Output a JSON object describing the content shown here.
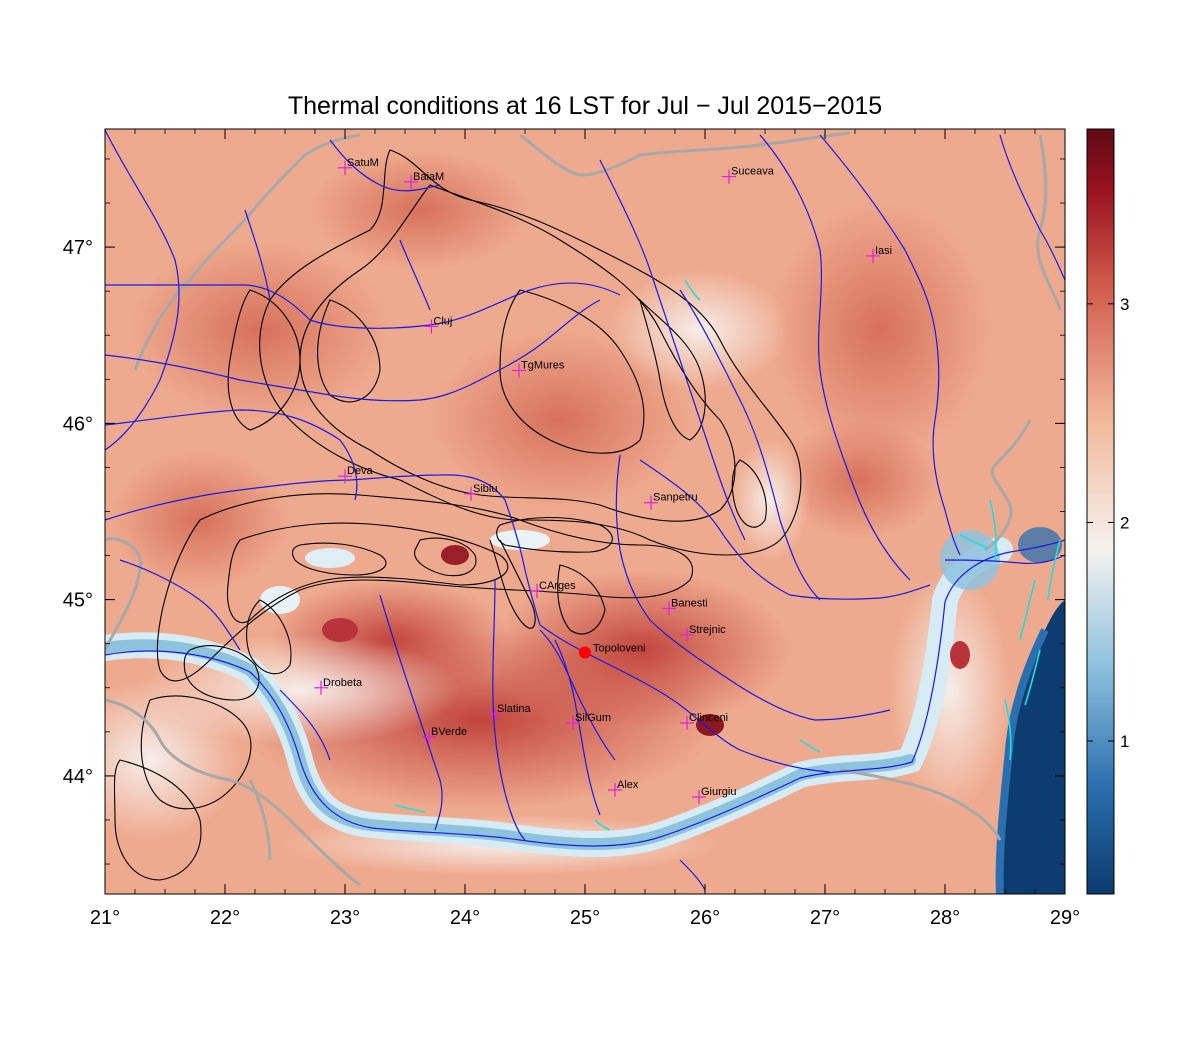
{
  "title": "Thermal conditions at 16 LST for Jul − Jul  2015−2015",
  "axes": {
    "x_ticks": [
      {
        "value": 21,
        "label": "21°"
      },
      {
        "value": 22,
        "label": "22°"
      },
      {
        "value": 23,
        "label": "23°"
      },
      {
        "value": 24,
        "label": "24°"
      },
      {
        "value": 25,
        "label": "25°"
      },
      {
        "value": 26,
        "label": "26°"
      },
      {
        "value": 27,
        "label": "27°"
      },
      {
        "value": 28,
        "label": "28°"
      },
      {
        "value": 29,
        "label": "29°"
      }
    ],
    "y_ticks": [
      {
        "value": 44,
        "label": "44°"
      },
      {
        "value": 45,
        "label": "45°"
      },
      {
        "value": 46,
        "label": "46°"
      },
      {
        "value": 47,
        "label": "47°"
      }
    ],
    "lon_range": [
      21,
      29
    ],
    "lat_range": [
      43.33,
      47.67
    ]
  },
  "colorbar": {
    "range": [
      0.3,
      3.8
    ],
    "ticks": [
      {
        "value": 1,
        "label": "1"
      },
      {
        "value": 2,
        "label": "2"
      },
      {
        "value": 3,
        "label": "3"
      }
    ],
    "colors": [
      "#0b3b6e",
      "#2b6fae",
      "#8fc2de",
      "#f4f2ef",
      "#f2b89a",
      "#d0584a",
      "#9a1220",
      "#5e0a14"
    ]
  },
  "cities": [
    {
      "name": "SatuM",
      "lon": 23.0,
      "lat": 47.45
    },
    {
      "name": "BaiaM",
      "lon": 23.55,
      "lat": 47.37
    },
    {
      "name": "Suceava",
      "lon": 26.2,
      "lat": 47.4
    },
    {
      "name": "Iasi",
      "lon": 27.4,
      "lat": 46.95
    },
    {
      "name": "Cluj",
      "lon": 23.72,
      "lat": 46.55
    },
    {
      "name": "TgMures",
      "lon": 24.45,
      "lat": 46.3
    },
    {
      "name": "Deva",
      "lon": 23.0,
      "lat": 45.7
    },
    {
      "name": "Sibiu",
      "lon": 24.05,
      "lat": 45.6
    },
    {
      "name": "Sanpetru",
      "lon": 25.55,
      "lat": 45.55
    },
    {
      "name": "CArges",
      "lon": 24.6,
      "lat": 45.05
    },
    {
      "name": "Banesti",
      "lon": 25.7,
      "lat": 44.95
    },
    {
      "name": "Strejnic",
      "lon": 25.85,
      "lat": 44.8
    },
    {
      "name": "Drobeta",
      "lon": 22.8,
      "lat": 44.5
    },
    {
      "name": "Slatina",
      "lon": 24.25,
      "lat": 44.35
    },
    {
      "name": "SilGum",
      "lon": 24.9,
      "lat": 44.3
    },
    {
      "name": "Clinceni",
      "lon": 25.85,
      "lat": 44.3
    },
    {
      "name": "BVerde",
      "lon": 23.7,
      "lat": 44.22
    },
    {
      "name": "Alex",
      "lon": 25.25,
      "lat": 43.92
    },
    {
      "name": "Giurgiu",
      "lon": 25.95,
      "lat": 43.88
    }
  ],
  "station": {
    "name": "Topoloveni",
    "lon": 25.0,
    "lat": 44.7
  },
  "legend_colors": {
    "city_marker": "#e020e0",
    "station_marker": "#ff0000",
    "river": "#1a1ae6",
    "border": "#a8a8a8",
    "lake": "#22dddd",
    "contour": "#000000"
  }
}
